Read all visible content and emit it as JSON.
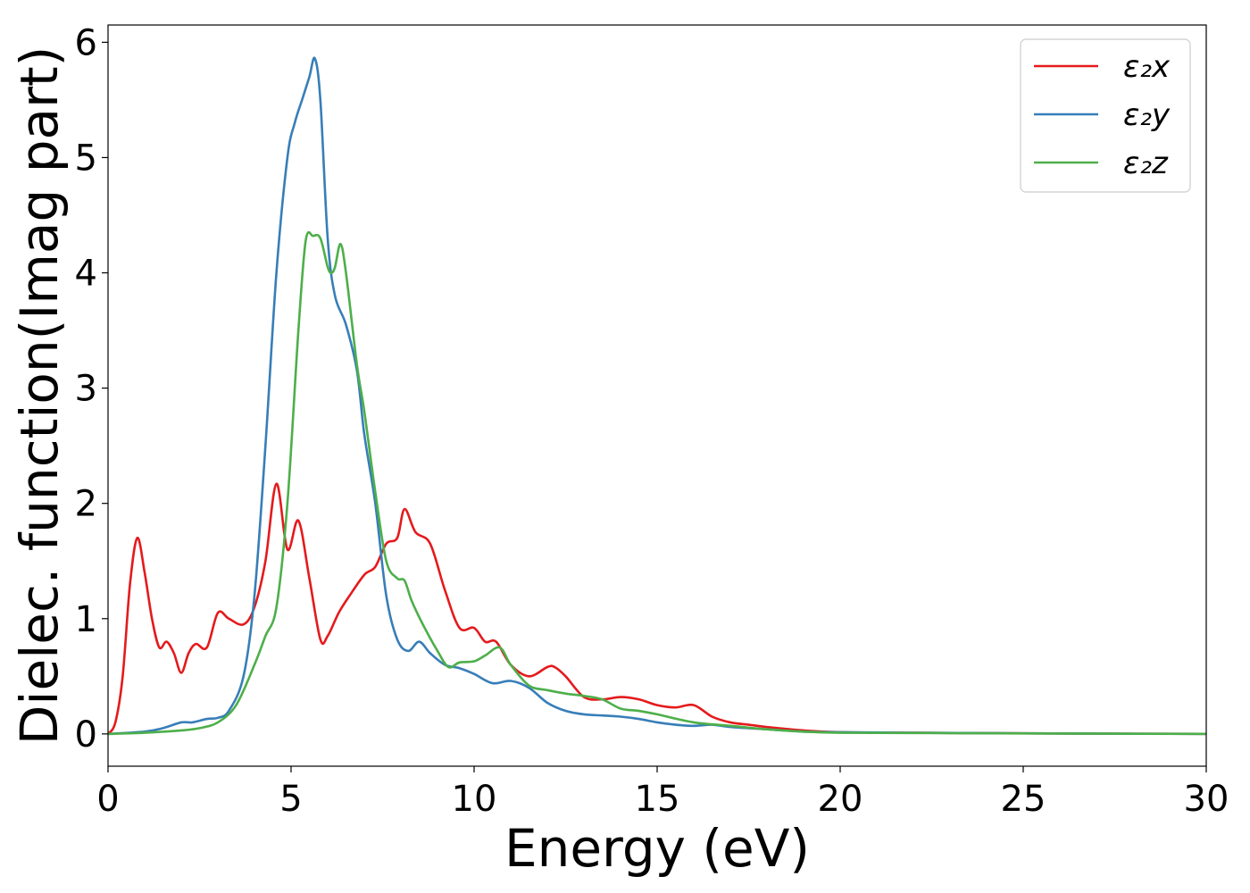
{
  "chart_data": {
    "type": "line",
    "title": "",
    "xlabel": "Energy (eV)",
    "ylabel": "Dielec. function(Imag part)",
    "xlim": [
      0,
      30
    ],
    "ylim": [
      -0.28,
      6.15
    ],
    "xticks": [
      0,
      5,
      10,
      15,
      20,
      25,
      30
    ],
    "yticks": [
      0,
      1,
      2,
      3,
      4,
      5,
      6
    ],
    "grid": false,
    "legend_position": "top-right",
    "series": [
      {
        "name": "ε₂x",
        "color": "#e41a1c",
        "x": [
          0,
          0.2,
          0.4,
          0.6,
          0.8,
          1.0,
          1.2,
          1.4,
          1.6,
          1.8,
          2.0,
          2.2,
          2.4,
          2.7,
          3.0,
          3.3,
          3.7,
          4.0,
          4.3,
          4.6,
          4.9,
          5.2,
          5.5,
          5.8,
          6.0,
          6.3,
          6.6,
          7.0,
          7.3,
          7.6,
          7.9,
          8.1,
          8.4,
          8.8,
          9.2,
          9.6,
          10.0,
          10.3,
          10.6,
          11.0,
          11.5,
          12.0,
          12.2,
          12.5,
          13.0,
          13.5,
          14.0,
          14.5,
          15.0,
          15.5,
          16.0,
          16.5,
          17.0,
          17.5,
          18.0,
          19.0,
          20.0,
          22.0,
          25.0,
          30.0
        ],
        "y": [
          0.0,
          0.1,
          0.5,
          1.3,
          1.7,
          1.4,
          1.0,
          0.75,
          0.8,
          0.7,
          0.53,
          0.7,
          0.78,
          0.75,
          1.05,
          1.0,
          0.95,
          1.1,
          1.5,
          2.17,
          1.6,
          1.85,
          1.35,
          0.82,
          0.85,
          1.05,
          1.2,
          1.38,
          1.45,
          1.65,
          1.7,
          1.95,
          1.75,
          1.65,
          1.25,
          0.92,
          0.92,
          0.8,
          0.8,
          0.6,
          0.5,
          0.58,
          0.58,
          0.5,
          0.32,
          0.3,
          0.32,
          0.3,
          0.25,
          0.23,
          0.25,
          0.15,
          0.1,
          0.08,
          0.06,
          0.03,
          0.015,
          0.01,
          0.005,
          0.0
        ]
      },
      {
        "name": "ε₂y",
        "color": "#377eb8",
        "x": [
          0,
          1.0,
          1.5,
          2.0,
          2.3,
          2.7,
          3.0,
          3.3,
          3.7,
          4.0,
          4.3,
          4.6,
          4.9,
          5.1,
          5.3,
          5.5,
          5.65,
          5.8,
          6.0,
          6.2,
          6.5,
          6.8,
          7.0,
          7.3,
          7.6,
          7.9,
          8.2,
          8.5,
          8.8,
          9.2,
          9.6,
          10.0,
          10.5,
          11.0,
          11.5,
          12.0,
          12.5,
          13.0,
          13.5,
          14.0,
          14.5,
          15.0,
          15.5,
          16.0,
          16.5,
          17.0,
          18.0,
          19.0,
          20.0,
          22.0,
          25.0,
          30.0
        ],
        "y": [
          0.0,
          0.02,
          0.05,
          0.1,
          0.1,
          0.13,
          0.14,
          0.2,
          0.5,
          1.2,
          2.5,
          4.0,
          5.0,
          5.3,
          5.5,
          5.7,
          5.86,
          5.5,
          4.3,
          3.8,
          3.55,
          3.15,
          2.6,
          2.0,
          1.2,
          0.82,
          0.72,
          0.8,
          0.7,
          0.6,
          0.57,
          0.52,
          0.44,
          0.46,
          0.4,
          0.27,
          0.2,
          0.17,
          0.16,
          0.15,
          0.13,
          0.1,
          0.08,
          0.07,
          0.08,
          0.06,
          0.04,
          0.02,
          0.015,
          0.01,
          0.005,
          0.0
        ]
      },
      {
        "name": "ε₂z",
        "color": "#4daf4a",
        "x": [
          0,
          1.0,
          2.0,
          2.5,
          3.0,
          3.5,
          4.0,
          4.3,
          4.6,
          4.9,
          5.2,
          5.4,
          5.6,
          5.8,
          6.0,
          6.1,
          6.2,
          6.35,
          6.5,
          6.8,
          7.0,
          7.3,
          7.6,
          7.9,
          8.1,
          8.3,
          8.6,
          9.0,
          9.3,
          9.6,
          10.0,
          10.3,
          10.7,
          11.0,
          11.5,
          12.0,
          12.5,
          13.0,
          13.5,
          14.0,
          14.5,
          15.0,
          16.0,
          17.0,
          18.0,
          19.0,
          20.0,
          22.0,
          25.0,
          30.0
        ],
        "y": [
          0.0,
          0.01,
          0.03,
          0.05,
          0.1,
          0.25,
          0.6,
          0.85,
          1.1,
          2.0,
          3.5,
          4.28,
          4.32,
          4.3,
          4.05,
          4.0,
          4.05,
          4.25,
          4.0,
          3.2,
          2.8,
          2.1,
          1.5,
          1.35,
          1.33,
          1.15,
          0.95,
          0.72,
          0.58,
          0.62,
          0.63,
          0.68,
          0.75,
          0.6,
          0.42,
          0.38,
          0.35,
          0.33,
          0.3,
          0.22,
          0.2,
          0.17,
          0.1,
          0.07,
          0.04,
          0.02,
          0.01,
          0.008,
          0.004,
          0.0
        ]
      }
    ]
  }
}
